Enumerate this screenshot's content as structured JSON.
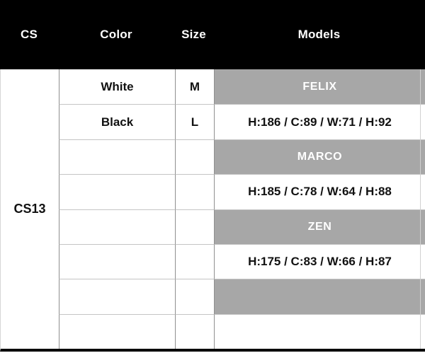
{
  "header": {
    "columns": [
      "CS",
      "Color",
      "Size",
      "Models"
    ]
  },
  "cs_cell": "CS13",
  "rows": [
    {
      "color": "White",
      "size": "M",
      "models": "FELIX",
      "band": true
    },
    {
      "color": "Black",
      "size": "L",
      "models": "H:186 / C:89 / W:71 / H:92",
      "band": false
    },
    {
      "color": "",
      "size": "",
      "models": "MARCO",
      "band": true
    },
    {
      "color": "",
      "size": "",
      "models": "H:185 / C:78 / W:64 / H:88",
      "band": false
    },
    {
      "color": "",
      "size": "",
      "models": "ZEN",
      "band": true
    },
    {
      "color": "",
      "size": "",
      "models": "H:175 / C:83 / W:66 / H:87",
      "band": false
    },
    {
      "color": "",
      "size": "",
      "models": "",
      "band": true
    },
    {
      "color": "",
      "size": "",
      "models": "",
      "band": false
    }
  ],
  "colors": {
    "header_bg": "#000000",
    "header_text": "#ffffff",
    "band_bg": "#a7a7a7",
    "band_text": "#ffffff",
    "grid_vertical": "#8f8f8f",
    "grid_horizontal": "#c4c4c4",
    "bottom_bar": "#000000"
  }
}
